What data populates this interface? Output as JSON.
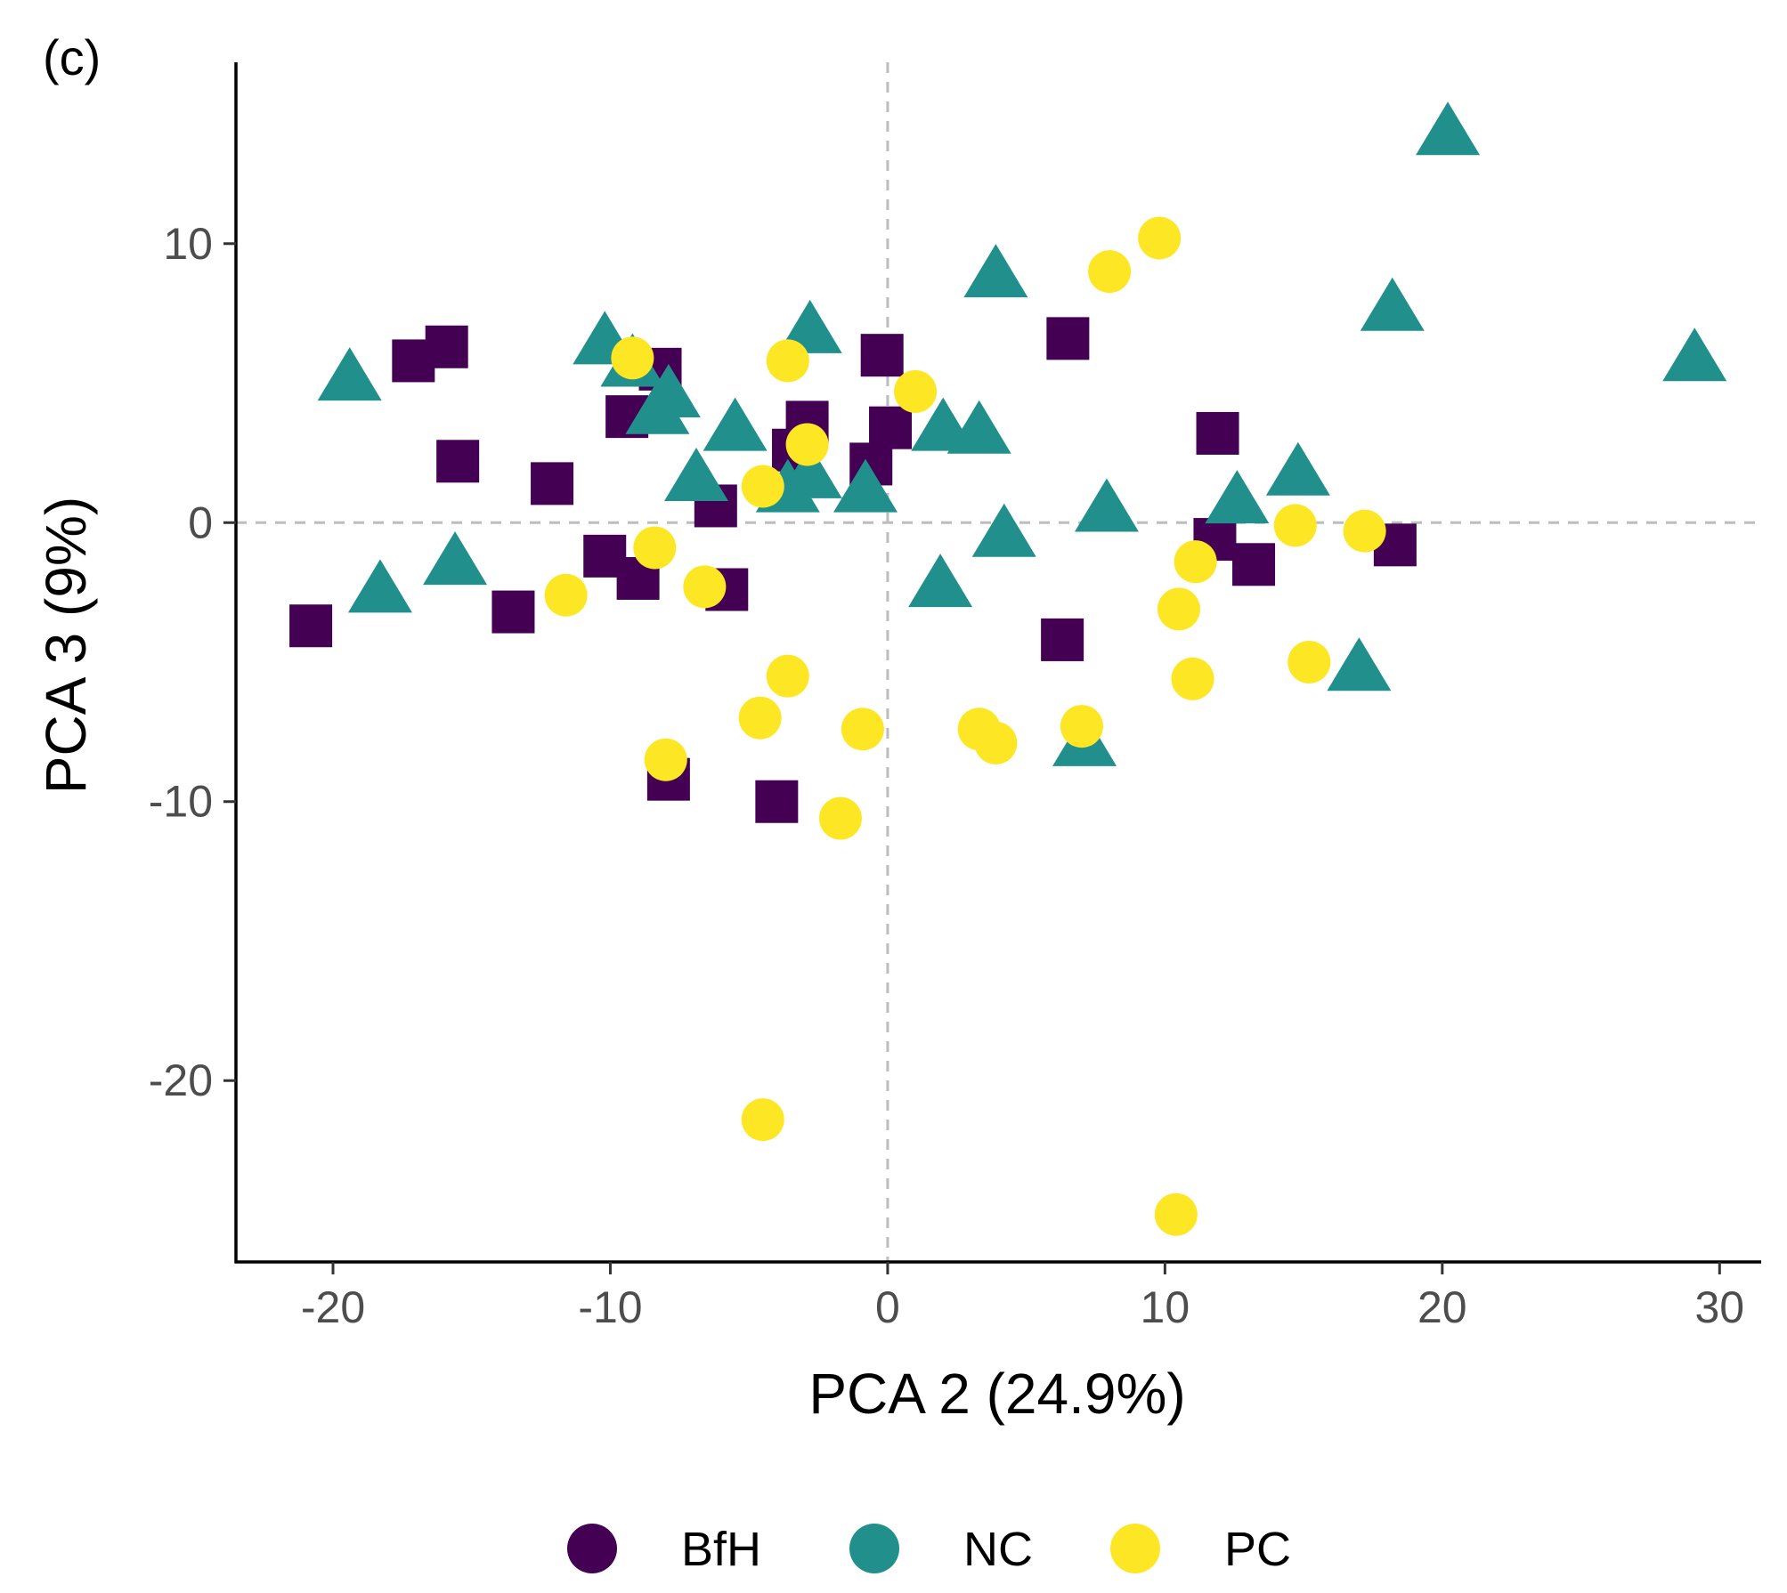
{
  "chart_data": {
    "type": "scatter",
    "panel_label": "(c)",
    "xlabel": "PCA 2 (24.9%)",
    "ylabel": "PCA 3 (9%)",
    "xlim": [
      -23.5,
      31.5
    ],
    "ylim": [
      -26.5,
      16.5
    ],
    "x_ticks": [
      -20,
      -10,
      0,
      10,
      20,
      30
    ],
    "y_ticks": [
      -20,
      -10,
      0,
      10
    ],
    "x_tick_labels": [
      "-20",
      "-10",
      "0",
      "10",
      "20",
      "30"
    ],
    "y_tick_labels": [
      "-20",
      "-10",
      "0",
      "10"
    ],
    "reference_lines": {
      "x": 0,
      "y": 0,
      "style": "dashed"
    },
    "legend_position": "bottom",
    "series": [
      {
        "name": "BfH",
        "marker": "square",
        "color": "#440154",
        "points": [
          [
            -20.8,
            -3.7
          ],
          [
            -17.1,
            5.8
          ],
          [
            -15.9,
            6.3
          ],
          [
            -15.5,
            2.2
          ],
          [
            -12.1,
            1.4
          ],
          [
            -13.5,
            -3.2
          ],
          [
            -10.2,
            -1.2
          ],
          [
            -9.0,
            -2.0
          ],
          [
            -9.4,
            3.8
          ],
          [
            -8.2,
            5.5
          ],
          [
            -6.2,
            0.6
          ],
          [
            -5.8,
            -2.4
          ],
          [
            -3.4,
            2.6
          ],
          [
            -2.9,
            3.6
          ],
          [
            -0.2,
            6.0
          ],
          [
            0.1,
            3.4
          ],
          [
            -0.6,
            2.1
          ],
          [
            -7.9,
            -9.2
          ],
          [
            -4.0,
            -10.0
          ],
          [
            6.3,
            -4.2
          ],
          [
            6.5,
            6.6
          ],
          [
            11.9,
            3.2
          ],
          [
            11.8,
            -0.6
          ],
          [
            13.2,
            -1.5
          ],
          [
            18.3,
            -0.8
          ]
        ]
      },
      {
        "name": "NC",
        "marker": "triangle",
        "color": "#21908C",
        "points": [
          [
            -19.4,
            5.1
          ],
          [
            -18.3,
            -2.5
          ],
          [
            -15.6,
            -1.5
          ],
          [
            -10.2,
            6.4
          ],
          [
            -9.2,
            5.6
          ],
          [
            -8.3,
            3.9
          ],
          [
            -7.9,
            4.5
          ],
          [
            -6.9,
            1.5
          ],
          [
            -5.5,
            3.3
          ],
          [
            -3.6,
            1.1
          ],
          [
            -2.8,
            1.6
          ],
          [
            -2.8,
            6.8
          ],
          [
            -0.8,
            1.1
          ],
          [
            2.0,
            3.3
          ],
          [
            3.3,
            3.2
          ],
          [
            1.9,
            -2.3
          ],
          [
            3.9,
            8.8
          ],
          [
            4.2,
            -0.5
          ],
          [
            7.9,
            0.4
          ],
          [
            7.1,
            -8.0
          ],
          [
            12.6,
            0.7
          ],
          [
            14.8,
            1.7
          ],
          [
            17.0,
            -5.3
          ],
          [
            18.2,
            7.6
          ],
          [
            20.2,
            13.9
          ],
          [
            29.1,
            5.8
          ]
        ]
      },
      {
        "name": "PC",
        "marker": "circle",
        "color": "#FDE725",
        "points": [
          [
            -11.6,
            -2.6
          ],
          [
            -9.2,
            5.9
          ],
          [
            -8.4,
            -0.9
          ],
          [
            -6.6,
            -2.3
          ],
          [
            -4.5,
            1.3
          ],
          [
            -3.6,
            5.8
          ],
          [
            -2.9,
            2.8
          ],
          [
            -3.6,
            -5.5
          ],
          [
            -4.6,
            -7.0
          ],
          [
            -8.0,
            -8.5
          ],
          [
            -0.9,
            -7.4
          ],
          [
            -1.7,
            -10.6
          ],
          [
            1.0,
            4.7
          ],
          [
            3.3,
            -7.4
          ],
          [
            3.9,
            -7.9
          ],
          [
            7.0,
            -7.3
          ],
          [
            8.0,
            9.0
          ],
          [
            9.8,
            10.2
          ],
          [
            10.5,
            -3.1
          ],
          [
            11.0,
            -5.6
          ],
          [
            11.1,
            -1.4
          ],
          [
            14.7,
            -0.1
          ],
          [
            15.2,
            -5.0
          ],
          [
            17.2,
            -0.3
          ],
          [
            -4.5,
            -21.4
          ],
          [
            10.4,
            -24.8
          ]
        ]
      }
    ]
  }
}
